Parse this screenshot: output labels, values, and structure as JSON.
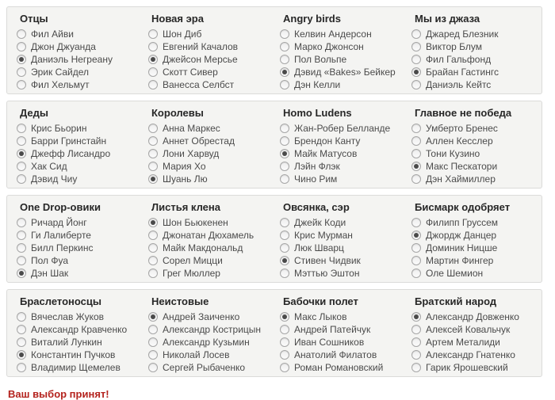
{
  "page": {
    "background": "#ffffff",
    "panel_background": "#f4f4f2",
    "panel_border": "#dbdbd9",
    "accent_red": "#b4231e"
  },
  "message": {
    "text": "Ваш выбор принят!"
  },
  "groups_per_row": 4,
  "groups": [
    {
      "title": "Отцы",
      "selected_index": 2,
      "options": [
        "Фил Айви",
        "Джон Джуанда",
        "Даниэль Негреану",
        "Эрик Сайдел",
        "Фил Хельмут"
      ]
    },
    {
      "title": "Новая эра",
      "selected_index": 2,
      "options": [
        "Шон Диб",
        "Евгений Качалов",
        "Джейсон Мерсье",
        "Скотт Сивер",
        "Ванесса Селбст"
      ]
    },
    {
      "title": "Angry birds",
      "selected_index": 3,
      "options": [
        "Келвин Андерсон",
        "Марко Джонсон",
        "Пол Вольпе",
        "Дэвид «Bakes» Бейкер",
        "Дэн Келли"
      ]
    },
    {
      "title": "Мы из джаза",
      "selected_index": 3,
      "options": [
        "Джаред Блезник",
        "Виктор Блум",
        "Фил Гальфонд",
        "Брайан Гастингс",
        "Даниэль Кейтс"
      ]
    },
    {
      "title": "Деды",
      "selected_index": 2,
      "options": [
        "Крис Бьорин",
        "Барри Гринстайн",
        "Джефф Лисандро",
        "Хак Сид",
        "Дэвид Чиу"
      ]
    },
    {
      "title": "Королевы",
      "selected_index": 4,
      "options": [
        "Анна Маркес",
        "Аннет Обрестад",
        "Лони Харвуд",
        "Мария Хо",
        "Шуань Лю"
      ]
    },
    {
      "title": "Homo Ludens",
      "selected_index": 2,
      "options": [
        "Жан-Робер Белланде",
        "Брендон Канту",
        "Майк Матусов",
        "Лэйн Флэк",
        "Чино Рим"
      ]
    },
    {
      "title": "Главное не победа",
      "selected_index": 3,
      "options": [
        "Умберто Бренес",
        "Аллен Кесслер",
        "Тони Кузино",
        "Макс Пескатори",
        "Дэн Хаймиллер"
      ]
    },
    {
      "title": "One Drop-овики",
      "selected_index": 4,
      "options": [
        "Ричард Йонг",
        "Ги Лалиберте",
        "Билл Перкинс",
        "Пол Фуа",
        "Дэн Шак"
      ]
    },
    {
      "title": "Листья клена",
      "selected_index": 0,
      "options": [
        "Шон Бьюкенен",
        "Джонатан Дюхамель",
        "Майк Макдональд",
        "Сорел Мицци",
        "Грег Мюллер"
      ]
    },
    {
      "title": "Овсянка, сэр",
      "selected_index": 3,
      "options": [
        "Джейк Коди",
        "Крис Мурман",
        "Люк Шварц",
        "Стивен Чидвик",
        "Мэттью Эштон"
      ]
    },
    {
      "title": "Бисмарк одобряет",
      "selected_index": 1,
      "options": [
        "Филипп Груссем",
        "Джордж Данцер",
        "Доминик Ницше",
        "Мартин Фингер",
        "Оле Шемион"
      ]
    },
    {
      "title": "Браслетоносцы",
      "selected_index": 3,
      "options": [
        "Вячеслав Жуков",
        "Александр Кравченко",
        "Виталий Лункин",
        "Константин Пучков",
        "Владимир Щемелев"
      ]
    },
    {
      "title": "Неистовые",
      "selected_index": 0,
      "options": [
        "Андрей Заиченко",
        "Александр Кострицын",
        "Александр Кузьмин",
        "Николай Лосев",
        "Сергей Рыбаченко"
      ]
    },
    {
      "title": "Бабочки полет",
      "selected_index": 0,
      "options": [
        "Макс Лыков",
        "Андрей Патейчук",
        "Иван Сошников",
        "Анатолий Филатов",
        "Роман Романовский"
      ]
    },
    {
      "title": "Братский народ",
      "selected_index": 0,
      "options": [
        "Александр Довженко",
        "Алексей Ковальчук",
        "Артем Металиди",
        "Александр Гнатенко",
        "Гарик Ярошевский"
      ]
    }
  ]
}
